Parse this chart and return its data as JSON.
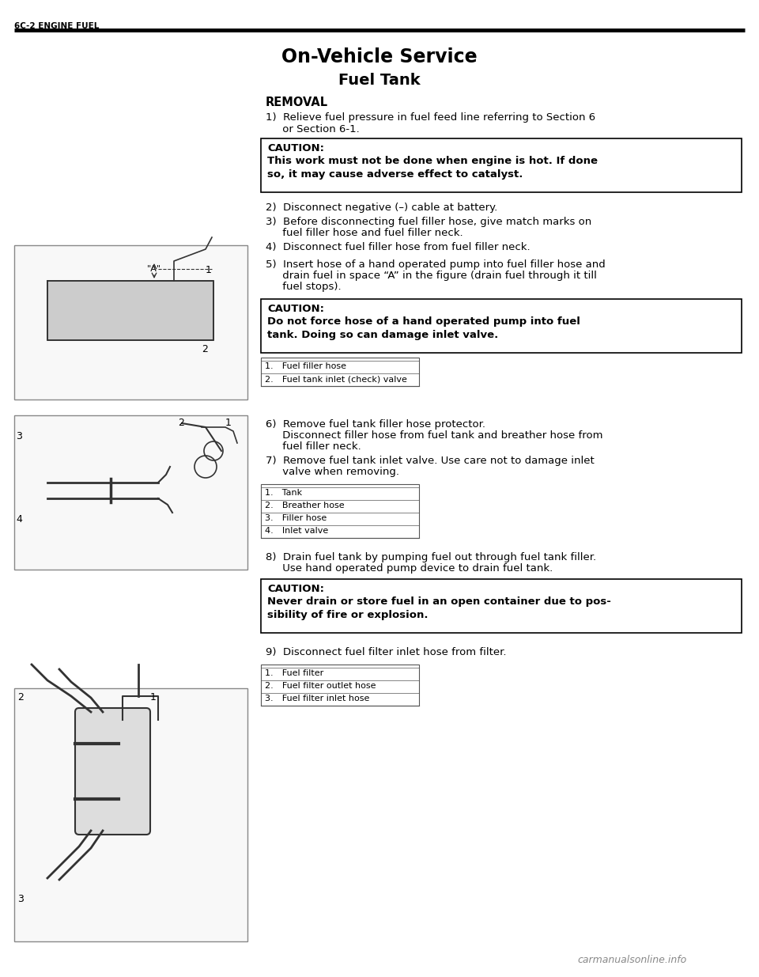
{
  "page_header": "6C-2 ENGINE FUEL",
  "main_title": "On-Vehicle Service",
  "section_title": "Fuel Tank",
  "subsection": "REMOVAL",
  "bg_color": "#ffffff",
  "text_color": "#000000",
  "header_line_color": "#000000",
  "steps": [
    "1) Relieve fuel pressure in fuel feed line referring to Section 6\n     or Section 6-1.",
    "2) Disconnect negative (–) cable at battery.",
    "3) Before disconnecting fuel filler hose, give match marks on\n     fuel filler hose and fuel filler neck.",
    "4) Disconnect fuel filler hose from fuel filler neck.",
    "5) Insert hose of a hand operated pump into fuel filler hose and\n     drain fuel in space “A” in the figure (drain fuel through it till\n     fuel stops).",
    "6) Remove fuel tank filler hose protector.\n     Disconnect filler hose from fuel tank and breather hose from\n     fuel filler neck.",
    "7) Remove fuel tank inlet valve. Use care not to damage inlet\n     valve when removing.",
    "8) Drain fuel tank by pumping fuel out through fuel tank filler.\n     Use hand operated pump device to drain fuel tank.",
    "9) Disconnect fuel filter inlet hose from filter."
  ],
  "caution1_title": "CAUTION:",
  "caution1_body": "This work must not be done when engine is hot. If done\nso, it may cause adverse effect to catalyst.",
  "caution2_title": "CAUTION:",
  "caution2_body": "Do not force hose of a hand operated pump into fuel\ntank. Doing so can damage inlet valve.",
  "caution3_title": "CAUTION:",
  "caution3_body": "Never drain or store fuel in an open container due to pos-\nsibility of fire or explosion.",
  "legend1": [
    "1. Fuel filler hose",
    "2. Fuel tank inlet (check) valve"
  ],
  "legend2": [
    "1. Tank",
    "2. Breather hose",
    "3. Filler hose",
    "4. Inlet valve"
  ],
  "legend3": [
    "1. Fuel filter",
    "2. Fuel filter outlet hose",
    "3. Fuel filter inlet hose"
  ],
  "watermark": "carmanualsonline.info"
}
